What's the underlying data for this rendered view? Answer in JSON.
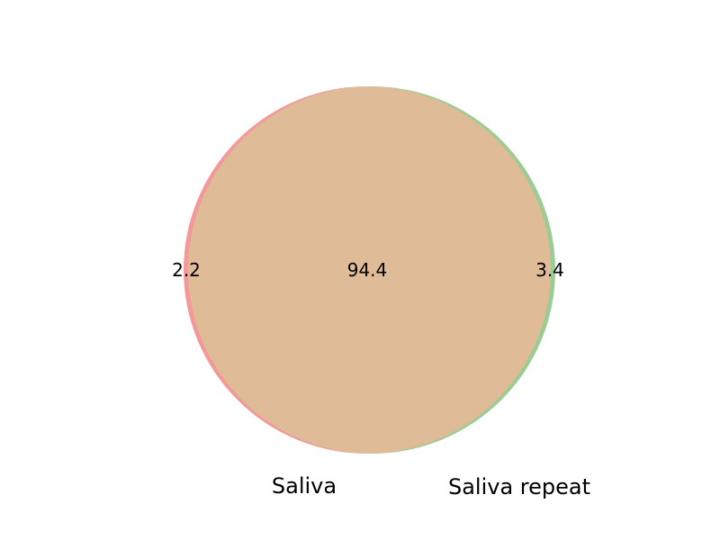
{
  "chart_data": {
    "type": "venn",
    "sets": [
      {
        "name": "Saliva",
        "color": "#f4989a"
      },
      {
        "name": "Saliva repeat",
        "color": "#9ccc94"
      }
    ],
    "regions": {
      "only_saliva": "2.2",
      "intersection": "94.4",
      "only_saliva_repeat": "3.4"
    },
    "colors": {
      "intersection": "#dfbb98"
    }
  }
}
